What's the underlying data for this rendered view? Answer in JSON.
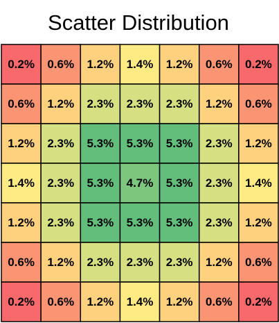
{
  "chart_data": {
    "type": "heatmap",
    "title": "Scatter Distribution",
    "values": [
      [
        0.2,
        0.6,
        1.2,
        1.4,
        1.2,
        0.6,
        0.2
      ],
      [
        0.6,
        1.2,
        2.3,
        2.3,
        2.3,
        1.2,
        0.6
      ],
      [
        1.2,
        2.3,
        5.3,
        5.3,
        5.3,
        2.3,
        1.2
      ],
      [
        1.4,
        2.3,
        5.3,
        4.7,
        5.3,
        2.3,
        1.4
      ],
      [
        1.2,
        2.3,
        5.3,
        5.3,
        5.3,
        2.3,
        1.2
      ],
      [
        0.6,
        1.2,
        2.3,
        2.3,
        2.3,
        1.2,
        0.6
      ],
      [
        0.2,
        0.6,
        1.2,
        1.4,
        1.2,
        0.6,
        0.2
      ]
    ],
    "value_labels": [
      [
        "0.2%",
        "0.6%",
        "1.2%",
        "1.4%",
        "1.2%",
        "0.6%",
        "0.2%"
      ],
      [
        "0.6%",
        "1.2%",
        "2.3%",
        "2.3%",
        "2.3%",
        "1.2%",
        "0.6%"
      ],
      [
        "1.2%",
        "2.3%",
        "5.3%",
        "5.3%",
        "5.3%",
        "2.3%",
        "1.2%"
      ],
      [
        "1.4%",
        "2.3%",
        "5.3%",
        "4.7%",
        "5.3%",
        "2.3%",
        "1.4%"
      ],
      [
        "1.2%",
        "2.3%",
        "5.3%",
        "5.3%",
        "5.3%",
        "2.3%",
        "1.2%"
      ],
      [
        "0.6%",
        "1.2%",
        "2.3%",
        "2.3%",
        "2.3%",
        "1.2%",
        "0.6%"
      ],
      [
        "0.2%",
        "0.6%",
        "1.2%",
        "1.4%",
        "1.2%",
        "0.6%",
        "0.2%"
      ]
    ],
    "colors": [
      [
        "#f8696b",
        "#fa9473",
        "#fed17f",
        "#ffeb84",
        "#fed17f",
        "#fa9473",
        "#f8696b"
      ],
      [
        "#fa9473",
        "#fed17f",
        "#d6df81",
        "#d6df81",
        "#d6df81",
        "#fed17f",
        "#fa9473"
      ],
      [
        "#fed17f",
        "#d6df81",
        "#63be7b",
        "#63be7b",
        "#63be7b",
        "#d6df81",
        "#fed17f"
      ],
      [
        "#ffeb84",
        "#d6df81",
        "#63be7b",
        "#7cc67d",
        "#63be7b",
        "#d6df81",
        "#ffeb84"
      ],
      [
        "#fed17f",
        "#d6df81",
        "#63be7b",
        "#63be7b",
        "#63be7b",
        "#d6df81",
        "#fed17f"
      ],
      [
        "#fa9473",
        "#fed17f",
        "#d6df81",
        "#d6df81",
        "#d6df81",
        "#fed17f",
        "#fa9473"
      ],
      [
        "#f8696b",
        "#fa9473",
        "#fed17f",
        "#ffeb84",
        "#fed17f",
        "#fa9473",
        "#f8696b"
      ]
    ]
  }
}
